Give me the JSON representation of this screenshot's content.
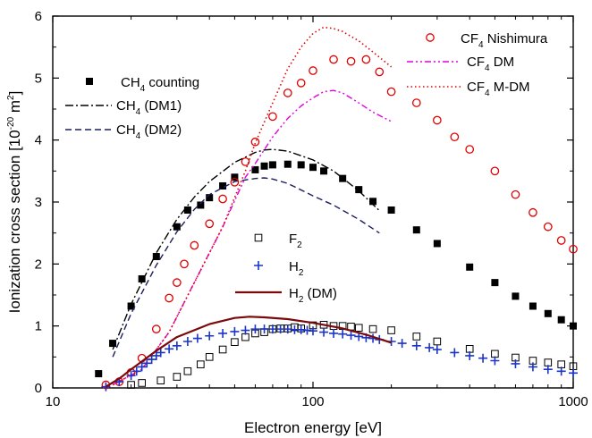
{
  "chart_data": {
    "type": "scatter",
    "title": "",
    "xlabel": "Electron energy [eV]",
    "ylabel_main": "Ionization cross section [10",
    "ylabel_exp": "-20",
    "ylabel_unit": " m",
    "ylabel_unit_exp": "2",
    "ylabel_close": "]",
    "x_scale": "log",
    "xlim": [
      10,
      1000
    ],
    "ylim": [
      0,
      6
    ],
    "x_ticks": [
      {
        "value": 10,
        "label": "10"
      },
      {
        "value": 100,
        "label": "100"
      },
      {
        "value": 1000,
        "label": "1000"
      }
    ],
    "y_ticks": [
      {
        "value": 0,
        "label": "0"
      },
      {
        "value": 1,
        "label": "1"
      },
      {
        "value": 2,
        "label": "2"
      },
      {
        "value": 3,
        "label": "3"
      },
      {
        "value": 4,
        "label": "4"
      },
      {
        "value": 5,
        "label": "5"
      },
      {
        "value": 6,
        "label": "6"
      }
    ],
    "grid": false,
    "series": [
      {
        "key": "ch4_counting",
        "name_main": "CH",
        "name_sub": "4",
        "name_rest": " counting",
        "style": "square-filled",
        "color": "#000000",
        "legend_pos": "top-left",
        "points": [
          [
            15,
            0.23
          ],
          [
            17,
            0.72
          ],
          [
            20,
            1.32
          ],
          [
            22,
            1.76
          ],
          [
            25,
            2.12
          ],
          [
            30,
            2.6
          ],
          [
            33,
            2.87
          ],
          [
            37,
            2.95
          ],
          [
            40,
            3.07
          ],
          [
            45,
            3.26
          ],
          [
            50,
            3.4
          ],
          [
            60,
            3.52
          ],
          [
            65,
            3.58
          ],
          [
            70,
            3.6
          ],
          [
            80,
            3.61
          ],
          [
            90,
            3.6
          ],
          [
            100,
            3.56
          ],
          [
            110,
            3.5
          ],
          [
            130,
            3.38
          ],
          [
            150,
            3.2
          ],
          [
            170,
            3.01
          ],
          [
            200,
            2.87
          ],
          [
            250,
            2.55
          ],
          [
            300,
            2.33
          ],
          [
            400,
            1.95
          ],
          [
            500,
            1.7
          ],
          [
            600,
            1.48
          ],
          [
            700,
            1.32
          ],
          [
            800,
            1.2
          ],
          [
            900,
            1.1
          ],
          [
            1000,
            1.0
          ]
        ]
      },
      {
        "key": "ch4_dm1",
        "name_main": "CH",
        "name_sub": "4",
        "name_rest": "  (DM1)",
        "style": "dashdot",
        "color": "#000000",
        "points": [
          [
            17,
            0.62
          ],
          [
            20,
            1.35
          ],
          [
            25,
            2.18
          ],
          [
            30,
            2.72
          ],
          [
            35,
            3.08
          ],
          [
            40,
            3.33
          ],
          [
            50,
            3.64
          ],
          [
            60,
            3.8
          ],
          [
            65,
            3.84
          ],
          [
            70,
            3.85
          ],
          [
            80,
            3.82
          ],
          [
            100,
            3.68
          ],
          [
            120,
            3.5
          ],
          [
            150,
            3.18
          ],
          [
            180,
            2.86
          ]
        ]
      },
      {
        "key": "ch4_dm2",
        "name_main": "CH",
        "name_sub": "4",
        "name_rest": "  (DM2)",
        "style": "dashed",
        "color": "#1b1f5e",
        "points": [
          [
            17,
            0.5
          ],
          [
            20,
            1.2
          ],
          [
            25,
            1.98
          ],
          [
            30,
            2.52
          ],
          [
            35,
            2.88
          ],
          [
            40,
            3.12
          ],
          [
            50,
            3.33
          ],
          [
            60,
            3.38
          ],
          [
            65,
            3.39
          ],
          [
            70,
            3.37
          ],
          [
            80,
            3.3
          ],
          [
            100,
            3.1
          ],
          [
            120,
            2.95
          ],
          [
            150,
            2.72
          ],
          [
            180,
            2.5
          ]
        ]
      },
      {
        "key": "cf4_nishimura",
        "name_main": "CF",
        "name_sub": "4",
        "name_rest": " Nishimura",
        "style": "circle-open",
        "color": "#e00000",
        "legend_pos": "top-right",
        "points": [
          [
            16,
            0.05
          ],
          [
            18,
            0.1
          ],
          [
            20,
            0.25
          ],
          [
            22,
            0.48
          ],
          [
            25,
            0.95
          ],
          [
            28,
            1.45
          ],
          [
            30,
            1.7
          ],
          [
            32,
            2.0
          ],
          [
            35,
            2.3
          ],
          [
            40,
            2.65
          ],
          [
            45,
            3.05
          ],
          [
            50,
            3.32
          ],
          [
            55,
            3.65
          ],
          [
            60,
            3.97
          ],
          [
            70,
            4.38
          ],
          [
            80,
            4.76
          ],
          [
            90,
            4.92
          ],
          [
            100,
            5.12
          ],
          [
            120,
            5.3
          ],
          [
            140,
            5.27
          ],
          [
            160,
            5.3
          ],
          [
            180,
            5.1
          ],
          [
            200,
            4.78
          ],
          [
            250,
            4.6
          ],
          [
            300,
            4.32
          ],
          [
            350,
            4.05
          ],
          [
            400,
            3.85
          ],
          [
            500,
            3.5
          ],
          [
            600,
            3.12
          ],
          [
            700,
            2.83
          ],
          [
            800,
            2.6
          ],
          [
            900,
            2.38
          ],
          [
            1000,
            2.24
          ]
        ]
      },
      {
        "key": "cf4_dm",
        "name_main": "CF",
        "name_sub": "4",
        "name_rest": " DM",
        "style": "dashdotdot",
        "color": "#e000e0",
        "points": [
          [
            17,
            0.05
          ],
          [
            22,
            0.3
          ],
          [
            28,
            0.9
          ],
          [
            35,
            1.7
          ],
          [
            45,
            2.6
          ],
          [
            55,
            3.4
          ],
          [
            60,
            3.62
          ],
          [
            70,
            4.05
          ],
          [
            80,
            4.35
          ],
          [
            90,
            4.55
          ],
          [
            100,
            4.68
          ],
          [
            110,
            4.78
          ],
          [
            120,
            4.8
          ],
          [
            130,
            4.76
          ],
          [
            150,
            4.6
          ],
          [
            170,
            4.45
          ],
          [
            200,
            4.3
          ]
        ]
      },
      {
        "key": "cf4_mdm",
        "name_main": "CF",
        "name_sub": "4",
        "name_rest": " M-DM",
        "style": "dotted",
        "color": "#e00000",
        "points": [
          [
            17,
            0.05
          ],
          [
            22,
            0.3
          ],
          [
            28,
            0.9
          ],
          [
            35,
            1.7
          ],
          [
            45,
            2.6
          ],
          [
            55,
            3.5
          ],
          [
            60,
            3.95
          ],
          [
            70,
            4.6
          ],
          [
            80,
            5.15
          ],
          [
            90,
            5.5
          ],
          [
            100,
            5.72
          ],
          [
            110,
            5.82
          ],
          [
            120,
            5.8
          ],
          [
            130,
            5.75
          ],
          [
            150,
            5.6
          ],
          [
            170,
            5.42
          ],
          [
            200,
            5.18
          ]
        ]
      },
      {
        "key": "f2",
        "name_main": "F",
        "name_sub": "2",
        "name_rest": "",
        "style": "square-open",
        "color": "#000000",
        "points": [
          [
            20,
            0.05
          ],
          [
            22,
            0.08
          ],
          [
            26,
            0.12
          ],
          [
            30,
            0.18
          ],
          [
            33,
            0.27
          ],
          [
            37,
            0.38
          ],
          [
            40,
            0.5
          ],
          [
            45,
            0.62
          ],
          [
            50,
            0.74
          ],
          [
            55,
            0.82
          ],
          [
            60,
            0.88
          ],
          [
            65,
            0.9
          ],
          [
            70,
            0.95
          ],
          [
            75,
            0.96
          ],
          [
            80,
            0.96
          ],
          [
            85,
            0.98
          ],
          [
            90,
            0.96
          ],
          [
            100,
            1.01
          ],
          [
            110,
            1.02
          ],
          [
            120,
            1.0
          ],
          [
            130,
            1.0
          ],
          [
            140,
            0.99
          ],
          [
            150,
            0.97
          ],
          [
            170,
            0.95
          ],
          [
            200,
            0.93
          ],
          [
            250,
            0.83
          ],
          [
            300,
            0.75
          ],
          [
            400,
            0.63
          ],
          [
            500,
            0.55
          ],
          [
            600,
            0.49
          ],
          [
            700,
            0.44
          ],
          [
            800,
            0.41
          ],
          [
            900,
            0.38
          ],
          [
            1000,
            0.35
          ]
        ]
      },
      {
        "key": "h2",
        "name_main": "H",
        "name_sub": "2",
        "name_rest": "",
        "style": "plus",
        "color": "#1a35c8",
        "points": [
          [
            16,
            0.02
          ],
          [
            18,
            0.1
          ],
          [
            20,
            0.2
          ],
          [
            21,
            0.27
          ],
          [
            22,
            0.34
          ],
          [
            23,
            0.4
          ],
          [
            24,
            0.46
          ],
          [
            25,
            0.52
          ],
          [
            26,
            0.57
          ],
          [
            28,
            0.63
          ],
          [
            30,
            0.68
          ],
          [
            33,
            0.75
          ],
          [
            36,
            0.8
          ],
          [
            40,
            0.84
          ],
          [
            45,
            0.88
          ],
          [
            50,
            0.91
          ],
          [
            55,
            0.93
          ],
          [
            60,
            0.95
          ],
          [
            65,
            0.95
          ],
          [
            70,
            0.95
          ],
          [
            75,
            0.95
          ],
          [
            80,
            0.95
          ],
          [
            85,
            0.94
          ],
          [
            90,
            0.94
          ],
          [
            95,
            0.93
          ],
          [
            100,
            0.92
          ],
          [
            110,
            0.9
          ],
          [
            120,
            0.88
          ],
          [
            130,
            0.87
          ],
          [
            140,
            0.85
          ],
          [
            150,
            0.83
          ],
          [
            160,
            0.81
          ],
          [
            170,
            0.8
          ],
          [
            180,
            0.78
          ],
          [
            200,
            0.75
          ],
          [
            220,
            0.72
          ],
          [
            250,
            0.68
          ],
          [
            280,
            0.65
          ],
          [
            300,
            0.62
          ],
          [
            350,
            0.57
          ],
          [
            400,
            0.52
          ],
          [
            450,
            0.48
          ],
          [
            500,
            0.44
          ],
          [
            600,
            0.39
          ],
          [
            700,
            0.34
          ],
          [
            800,
            0.3
          ],
          [
            900,
            0.27
          ],
          [
            1000,
            0.24
          ]
        ]
      },
      {
        "key": "h2_dm",
        "name_main": "H",
        "name_sub": "2",
        "name_rest": " (DM)",
        "style": "solid",
        "color": "#7a0a0a",
        "points": [
          [
            16,
            0.02
          ],
          [
            18,
            0.15
          ],
          [
            20,
            0.3
          ],
          [
            25,
            0.6
          ],
          [
            30,
            0.82
          ],
          [
            40,
            1.03
          ],
          [
            50,
            1.13
          ],
          [
            57,
            1.15
          ],
          [
            65,
            1.14
          ],
          [
            80,
            1.11
          ],
          [
            100,
            1.05
          ],
          [
            130,
            0.96
          ],
          [
            160,
            0.86
          ],
          [
            200,
            0.73
          ]
        ]
      }
    ]
  }
}
